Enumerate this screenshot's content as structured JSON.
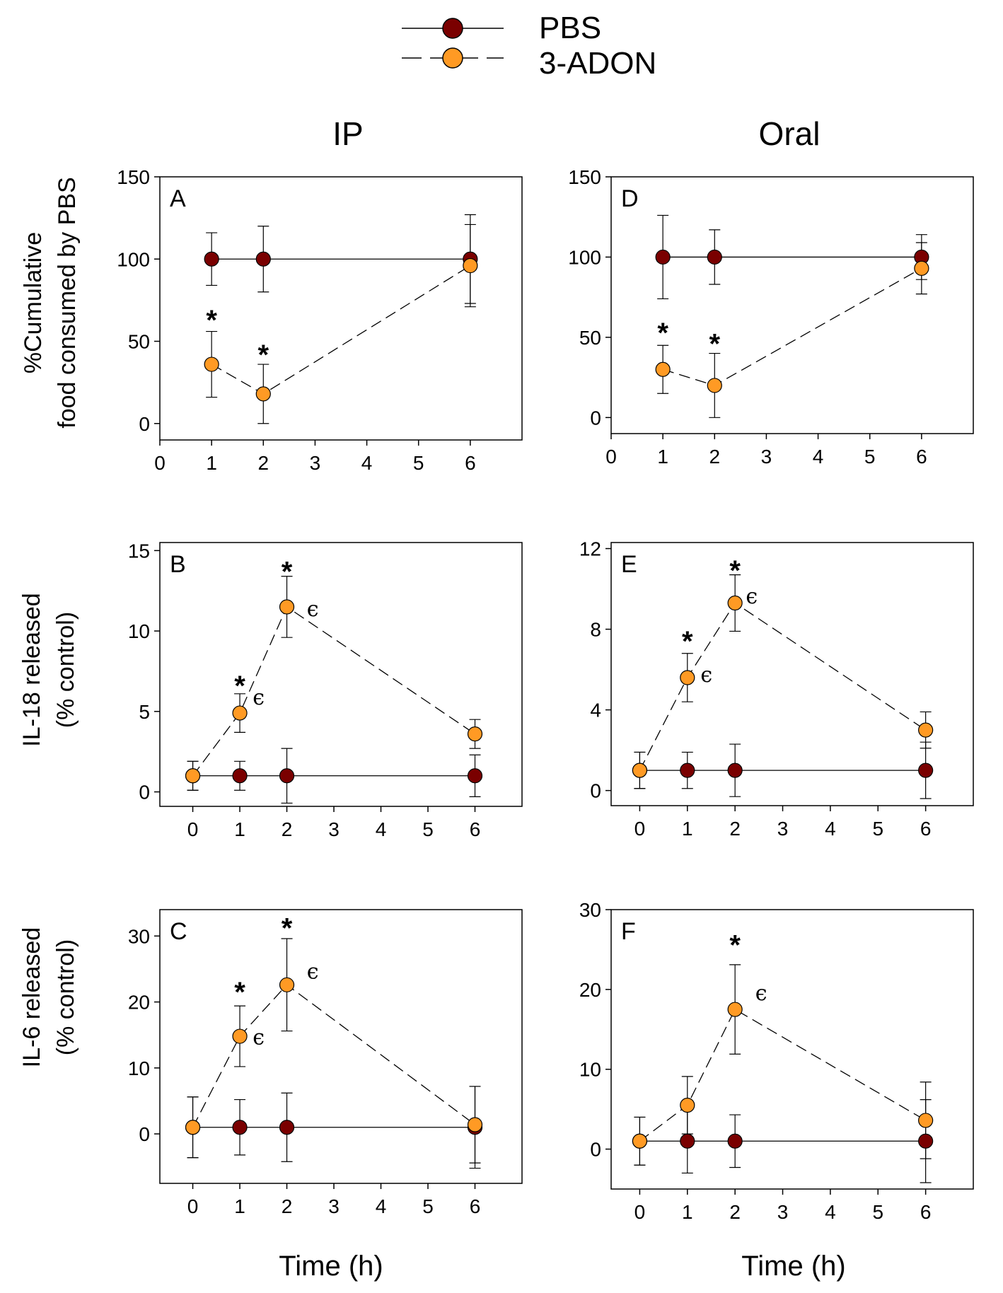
{
  "legend": [
    {
      "name": "PBS",
      "color": "#7a0000",
      "dash": false
    },
    {
      "name": "3-ADON",
      "color": "#ff9a24",
      "dash": true
    }
  ],
  "columns": [
    "IP",
    "Oral"
  ],
  "row_labels": [
    [
      "%Cumulative",
      "food consumed by PBS"
    ],
    [
      "IL-18 released",
      "(% control)"
    ],
    [
      "IL-6 released",
      "(% control)"
    ]
  ],
  "xlabel": "Time (h)",
  "colors": {
    "pbs": "#7a0000",
    "adon": "#ff9a24",
    "axis": "#000000"
  },
  "chart_data": [
    {
      "panel": "A",
      "type": "line",
      "column": "IP",
      "row": 0,
      "ylabel": "%Cumulative food consumed by PBS",
      "xlabel": "",
      "xlim": [
        0,
        7
      ],
      "ylim": [
        -10,
        150
      ],
      "xticks": [
        0,
        1,
        2,
        3,
        4,
        5,
        6
      ],
      "yticks": [
        0,
        50,
        100,
        150
      ],
      "series": [
        {
          "name": "PBS",
          "x": [
            1,
            2,
            6
          ],
          "values": [
            100,
            100,
            100
          ],
          "errors": [
            16,
            20,
            27
          ]
        },
        {
          "name": "3-ADON",
          "x": [
            1,
            2,
            6
          ],
          "values": [
            36,
            18,
            96
          ],
          "errors": [
            20,
            18,
            25
          ]
        }
      ],
      "annotations": [
        {
          "text": "*",
          "x": 1,
          "y": 64
        },
        {
          "text": "*",
          "x": 2,
          "y": 43
        }
      ]
    },
    {
      "panel": "D",
      "type": "line",
      "column": "Oral",
      "row": 0,
      "ylabel": "",
      "xlabel": "",
      "xlim": [
        0,
        7
      ],
      "ylim": [
        -10,
        150
      ],
      "xticks": [
        0,
        1,
        2,
        3,
        4,
        5,
        6
      ],
      "yticks": [
        0,
        50,
        100,
        150
      ],
      "series": [
        {
          "name": "PBS",
          "x": [
            1,
            2,
            6
          ],
          "values": [
            100,
            100,
            100
          ],
          "errors": [
            26,
            17,
            14
          ]
        },
        {
          "name": "3-ADON",
          "x": [
            1,
            2,
            6
          ],
          "values": [
            30,
            20,
            93
          ],
          "errors": [
            15,
            20,
            16
          ]
        }
      ],
      "annotations": [
        {
          "text": "*",
          "x": 1,
          "y": 54
        },
        {
          "text": "*",
          "x": 2,
          "y": 47
        }
      ]
    },
    {
      "panel": "B",
      "type": "line",
      "column": "IP",
      "row": 1,
      "ylabel": "IL-18 released (% control)",
      "xlabel": "",
      "xlim": [
        -0.7,
        7
      ],
      "ylim": [
        -0.9,
        15.5
      ],
      "xticks": [
        0,
        1,
        2,
        3,
        4,
        5,
        6
      ],
      "yticks": [
        0,
        5,
        10,
        15
      ],
      "series": [
        {
          "name": "PBS",
          "x": [
            0,
            1,
            2,
            6
          ],
          "values": [
            1,
            1,
            1,
            1
          ],
          "errors": [
            0.9,
            0.9,
            1.7,
            1.3
          ]
        },
        {
          "name": "3-ADON",
          "x": [
            0,
            1,
            2,
            6
          ],
          "values": [
            1,
            4.9,
            11.5,
            3.6
          ],
          "errors": [
            0.9,
            1.2,
            1.9,
            0.9
          ]
        }
      ],
      "annotations": [
        {
          "text": "*",
          "x": 1,
          "y": 6.7
        },
        {
          "text": "*",
          "x": 2,
          "y": 13.8
        },
        {
          "text": "ϵ",
          "x": 1.4,
          "y": 5.7
        },
        {
          "text": "ϵ",
          "x": 2.55,
          "y": 11.2
        }
      ]
    },
    {
      "panel": "E",
      "type": "line",
      "column": "Oral",
      "row": 1,
      "ylabel": "",
      "xlabel": "",
      "xlim": [
        -0.6,
        7
      ],
      "ylim": [
        -0.75,
        12.3
      ],
      "xticks": [
        0,
        1,
        2,
        3,
        4,
        5,
        6
      ],
      "yticks": [
        0,
        4,
        8,
        12
      ],
      "series": [
        {
          "name": "PBS",
          "x": [
            0,
            1,
            2,
            6
          ],
          "values": [
            1,
            1,
            1,
            1
          ],
          "errors": [
            0.9,
            0.9,
            1.3,
            1.4
          ]
        },
        {
          "name": "3-ADON",
          "x": [
            0,
            1,
            2,
            6
          ],
          "values": [
            1,
            5.6,
            9.3,
            3
          ],
          "errors": [
            0.9,
            1.2,
            1.4,
            0.9
          ]
        }
      ],
      "annotations": [
        {
          "text": "*",
          "x": 1,
          "y": 7.5
        },
        {
          "text": "*",
          "x": 2,
          "y": 11
        },
        {
          "text": "ϵ",
          "x": 1.4,
          "y": 5.6
        },
        {
          "text": "ϵ",
          "x": 2.35,
          "y": 9.5
        }
      ]
    },
    {
      "panel": "C",
      "type": "line",
      "column": "IP",
      "row": 2,
      "ylabel": "IL-6 released (% control)",
      "xlabel": "Time (h)",
      "xlim": [
        -0.7,
        7
      ],
      "ylim": [
        -7.5,
        34
      ],
      "xticks": [
        0,
        1,
        2,
        3,
        4,
        5,
        6
      ],
      "yticks": [
        0,
        10,
        20,
        30
      ],
      "series": [
        {
          "name": "PBS",
          "x": [
            0,
            1,
            2,
            6
          ],
          "values": [
            1,
            1,
            1,
            1
          ],
          "errors": [
            4.6,
            4.2,
            5.2,
            6.2
          ]
        },
        {
          "name": "3-ADON",
          "x": [
            0,
            1,
            2,
            6
          ],
          "values": [
            1,
            14.8,
            22.6,
            1.4
          ],
          "errors": [
            4.6,
            4.6,
            7,
            5.8
          ]
        }
      ],
      "annotations": [
        {
          "text": "*",
          "x": 1,
          "y": 21.8
        },
        {
          "text": "*",
          "x": 2,
          "y": 31.5
        },
        {
          "text": "ϵ",
          "x": 1.4,
          "y": 14.2
        },
        {
          "text": "ϵ",
          "x": 2.55,
          "y": 24.2
        }
      ]
    },
    {
      "panel": "F",
      "type": "line",
      "column": "Oral",
      "row": 2,
      "ylabel": "",
      "xlabel": "Time (h)",
      "xlim": [
        -0.6,
        7
      ],
      "ylim": [
        -5,
        30
      ],
      "xticks": [
        0,
        1,
        2,
        3,
        4,
        5,
        6
      ],
      "yticks": [
        0,
        10,
        20,
        30
      ],
      "series": [
        {
          "name": "PBS",
          "x": [
            0,
            1,
            2,
            6
          ],
          "values": [
            1,
            1,
            1,
            1
          ],
          "errors": [
            3,
            4,
            3.3,
            5.2
          ]
        },
        {
          "name": "3-ADON",
          "x": [
            0,
            1,
            2,
            6
          ],
          "values": [
            1,
            5.5,
            17.5,
            3.6
          ],
          "errors": [
            3,
            3.6,
            5.6,
            4.8
          ]
        }
      ],
      "annotations": [
        {
          "text": "*",
          "x": 2,
          "y": 25.8
        },
        {
          "text": "ϵ",
          "x": 2.55,
          "y": 19.2
        }
      ]
    }
  ]
}
